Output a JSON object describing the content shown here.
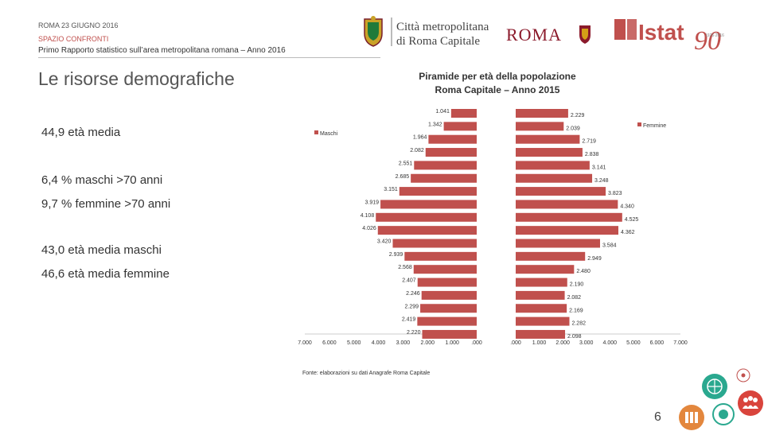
{
  "header": {
    "date": "ROMA 23 GIUGNO 2016",
    "section": "SPAZIO CONFRONTI",
    "subtitle": "Primo Rapporto statistico sull’area metropolitana romana – Anno 2016"
  },
  "logos": {
    "citta_line1": "Città metropolitana",
    "citta_line2": "di Roma Capitale",
    "roma": "ROMA",
    "istat": "Istat",
    "istat_90": "90",
    "istat_years": "1926·2016"
  },
  "section_title": "Le risorse demografiche",
  "stats": [
    "44,9 età media",
    "6,4 % maschi >70 anni",
    "9,7 % femmine >70 anni",
    "43,0 età media maschi",
    "46,6 età media femmine"
  ],
  "chart_title_line1": "Piramide per età della popolazione",
  "chart_title_line2": "Roma Capitale – Anno 2015",
  "source": "Fonte: elaborazioni su dati Anagrafe Roma Capitale",
  "page_number": "6",
  "colors": {
    "bar": "#c0504d",
    "accent": "#c0504d"
  },
  "chart_data": {
    "type": "bar",
    "orientation": "horizontal-population-pyramid",
    "categories": [
      "…",
      "…",
      "…",
      "…",
      "…",
      "…",
      "…",
      "…",
      "…",
      "…",
      "…",
      "…",
      "…",
      "…",
      "…",
      "…",
      "…",
      "…"
    ],
    "series": [
      {
        "name": "Maschi",
        "values": [
          1041,
          1342,
          1964,
          2082,
          2551,
          2685,
          3151,
          3919,
          4108,
          4026,
          3420,
          2939,
          2568,
          2407,
          2246,
          2299,
          2419,
          2220
        ],
        "labels": [
          "1.041",
          "1.342",
          "1.964",
          "2.082",
          "2.551",
          "2.685",
          "3.151",
          "3.919",
          "4.108",
          "4.026",
          "3.420",
          "2.939",
          "2.568",
          "2.407",
          "2.246",
          "2.299",
          "2.419",
          "2.220"
        ]
      },
      {
        "name": "Femmine",
        "values": [
          2229,
          2039,
          2719,
          2838,
          3141,
          3248,
          3823,
          4340,
          4525,
          4362,
          3584,
          2949,
          2480,
          2190,
          2082,
          2169,
          2282,
          2098
        ],
        "labels": [
          "2.229",
          "2.039",
          "2.719",
          "2.838",
          "3.141",
          "3.248",
          "3.823",
          "4.340",
          "4.525",
          "4.362",
          "3.584",
          "2.949",
          "2.480",
          "2.190",
          "2.082",
          "2.169",
          "2.282",
          "2.098"
        ]
      }
    ],
    "left_axis_ticks": [
      {
        "value": 7000,
        "label": "7.000"
      },
      {
        "value": 6000,
        "label": "6.000"
      },
      {
        "value": 5000,
        "label": "5.000"
      },
      {
        "value": 4000,
        "label": "4.000"
      },
      {
        "value": 3000,
        "label": "3.000"
      },
      {
        "value": 2000,
        "label": "2.000"
      },
      {
        "value": 1000,
        "label": "1.000"
      },
      {
        "value": 0,
        "label": ".000"
      }
    ],
    "right_axis_ticks": [
      {
        "value": 0,
        "label": ".000"
      },
      {
        "value": 1000,
        "label": "1.000"
      },
      {
        "value": 2000,
        "label": "2.000"
      },
      {
        "value": 3000,
        "label": "3.000"
      },
      {
        "value": 4000,
        "label": "4.000"
      },
      {
        "value": 5000,
        "label": "5.000"
      },
      {
        "value": 6000,
        "label": "6.000"
      },
      {
        "value": 7000,
        "label": "7.000"
      }
    ],
    "xlim": [
      0,
      7000
    ],
    "legend": {
      "maschi": "Maschi",
      "femmine": "Femmine"
    },
    "grid": false
  }
}
